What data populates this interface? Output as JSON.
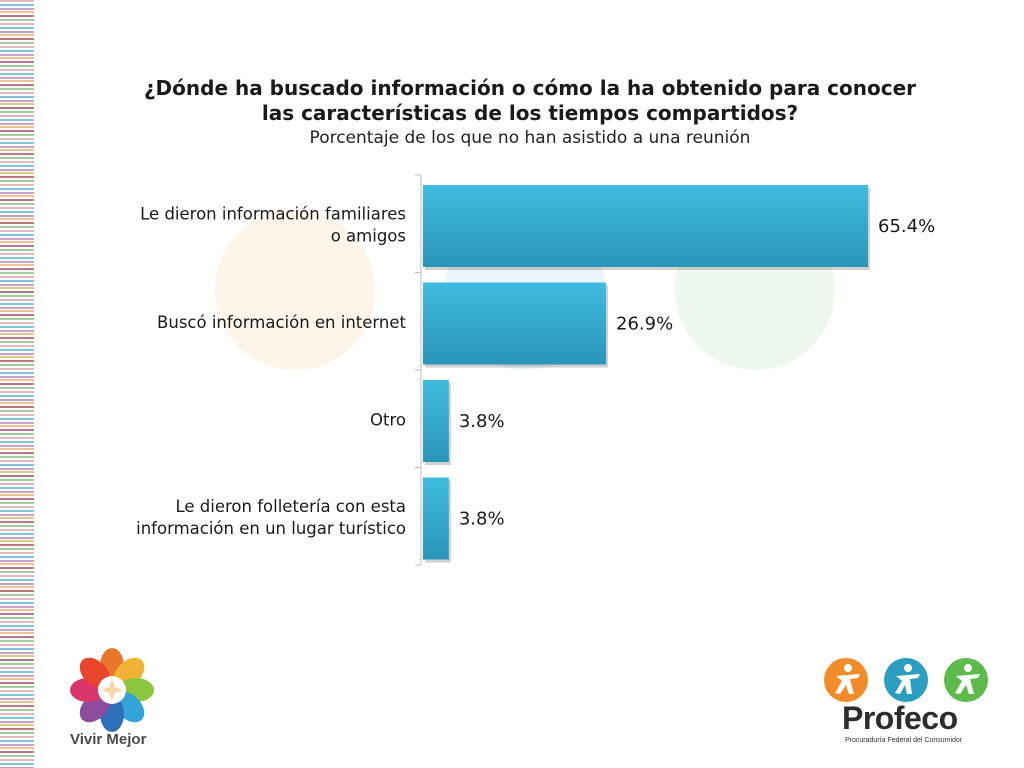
{
  "title": {
    "line1": "¿Dónde ha buscado información o cómo la ha obtenido para conocer",
    "line2": "las características de los tiempos compartidos?",
    "subtitle": "Porcentaje de los que no han asistido a una reunión"
  },
  "chart_data": {
    "type": "bar",
    "orientation": "horizontal",
    "categories": [
      [
        "Le dieron información familiares",
        "o amigos"
      ],
      [
        "Buscó información en internet"
      ],
      [
        "Otro"
      ],
      [
        "Le dieron folletería con esta",
        "información en un lugar turístico"
      ]
    ],
    "values": [
      65.4,
      26.9,
      3.8,
      3.8
    ],
    "value_labels": [
      "65.4%",
      "26.9%",
      "3.8%",
      "3.8%"
    ],
    "xlim": [
      0,
      65.4
    ],
    "grid": false,
    "legend": "none",
    "bar_color": "#35b3d6"
  },
  "logos": {
    "left_text": "Vivir Mejor",
    "right_name": "Profeco",
    "right_subtitle": "Procuraduría Federal del Consumidor"
  },
  "colors": {
    "bar_light": "#3fbce0",
    "bar_dark": "#2a9dc0"
  }
}
